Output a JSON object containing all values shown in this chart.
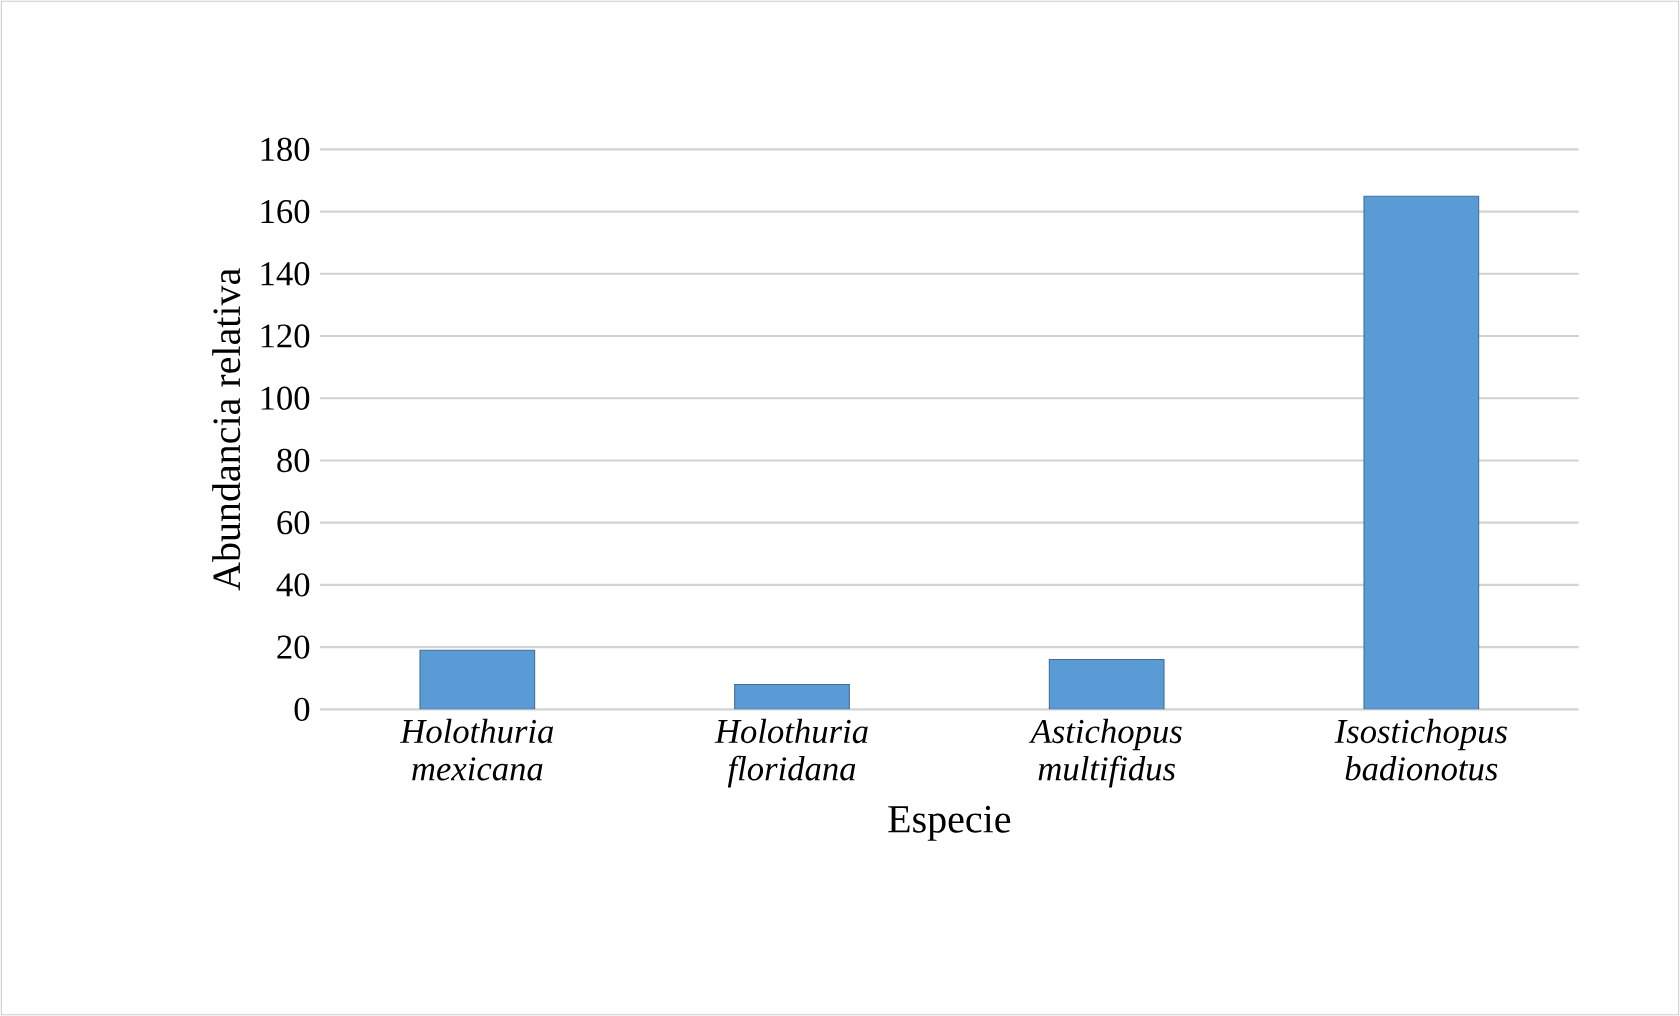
{
  "chart_data": {
    "type": "bar",
    "xlabel": "Especie",
    "ylabel": "Abundancia relativa",
    "categories": [
      "Holothuria mexicana",
      "Holothuria floridana",
      "Astichopus multifidus",
      "Isostichopus badionotus"
    ],
    "values": [
      19,
      8,
      16,
      165
    ],
    "color": "#5b9bd5",
    "ylim": [
      0,
      180
    ],
    "yticks": [
      0,
      20,
      40,
      60,
      80,
      100,
      120,
      140,
      160,
      180
    ],
    "grid": "y"
  }
}
